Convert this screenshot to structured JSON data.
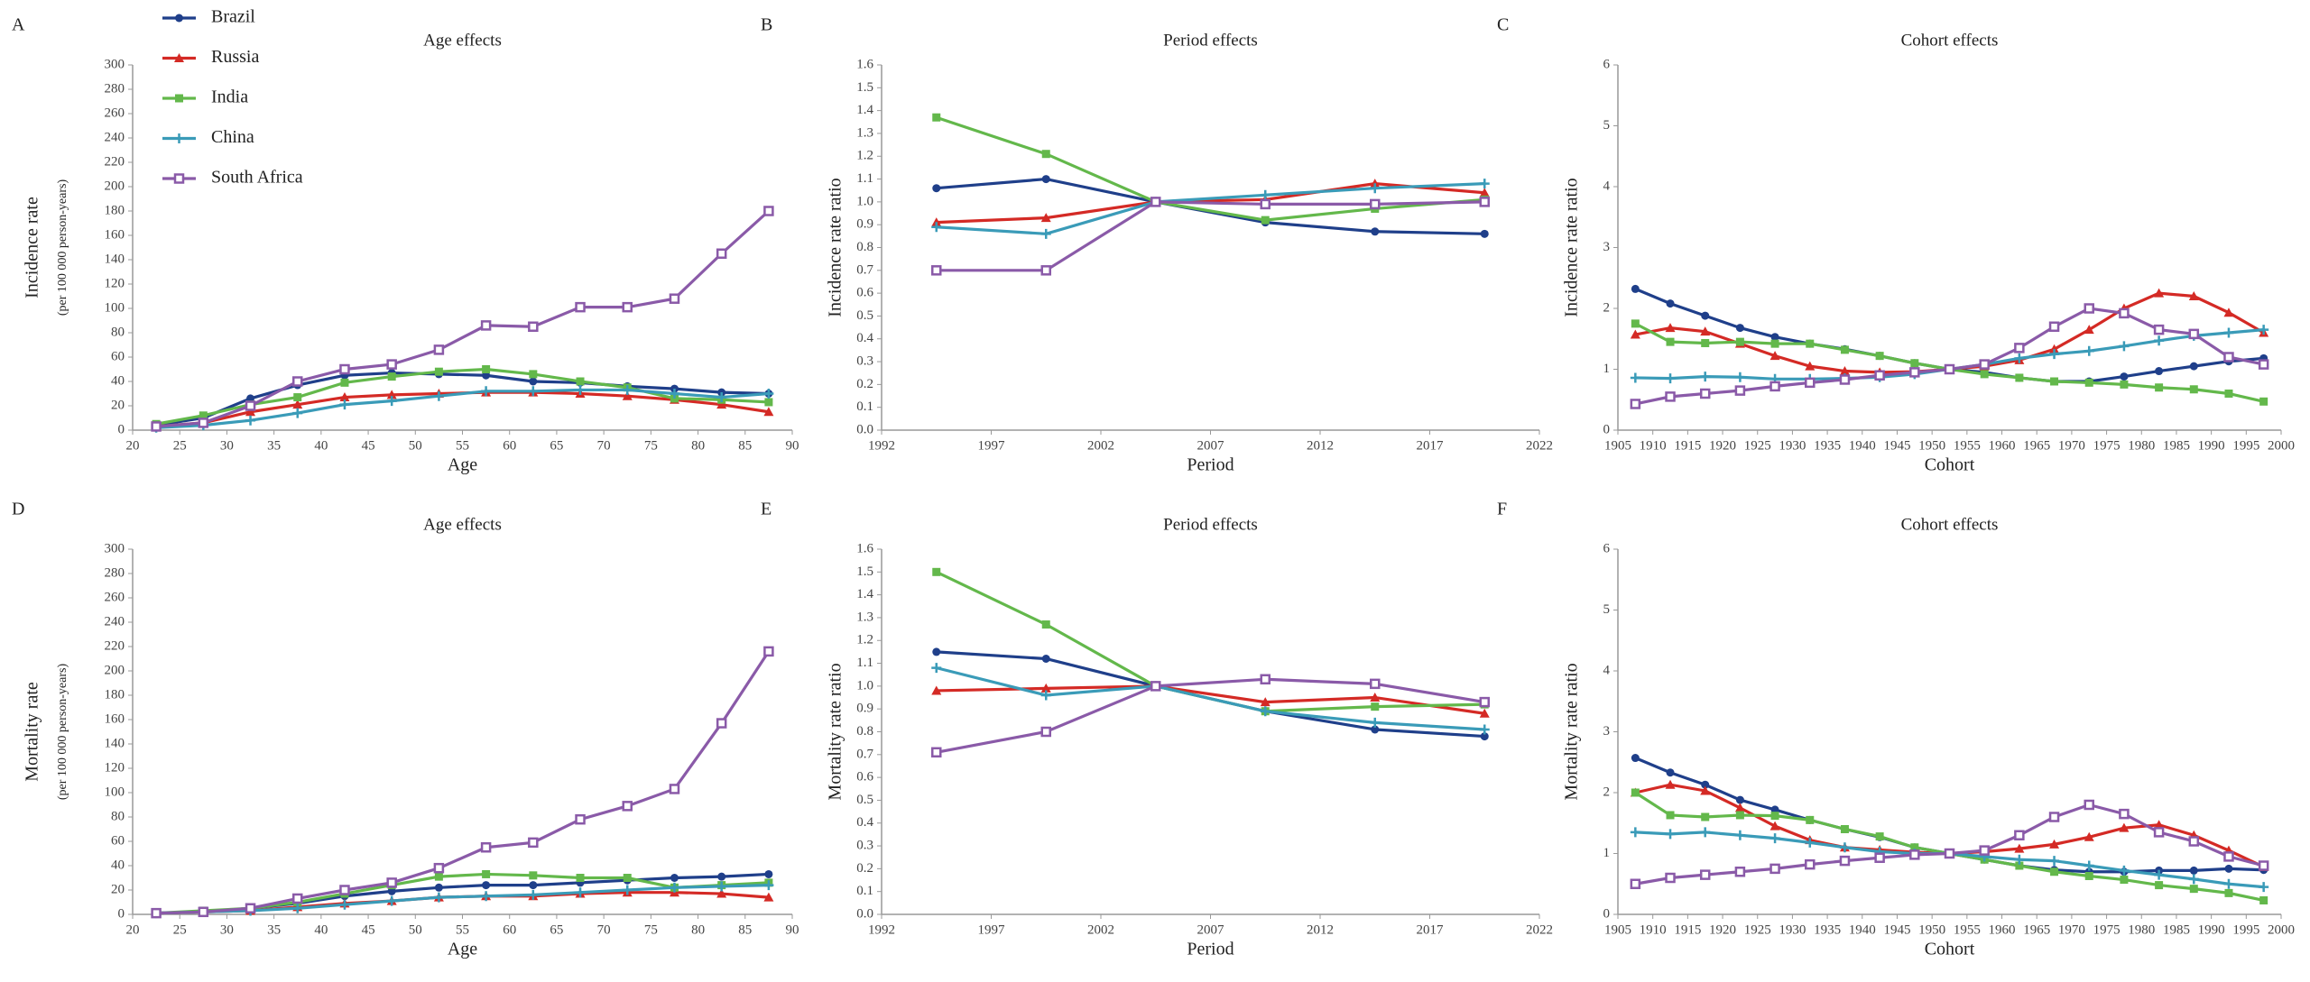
{
  "chart_data": [
    {
      "type": "line",
      "panel": "A",
      "title": "Age effects",
      "x_label": "Age",
      "y_label": "Incidence rate",
      "y_label_sub": "(per 100 000 person-years)",
      "legend": true,
      "x": [
        22.5,
        27.5,
        32.5,
        37.5,
        42.5,
        47.5,
        52.5,
        57.5,
        62.5,
        67.5,
        72.5,
        77.5,
        82.5,
        87.5
      ],
      "xlim": [
        20,
        90
      ],
      "xticks": [
        20,
        25,
        30,
        35,
        40,
        45,
        50,
        55,
        60,
        65,
        70,
        75,
        80,
        85,
        90
      ],
      "ylim": [
        0,
        300
      ],
      "yticks": [
        0,
        20,
        40,
        60,
        80,
        100,
        120,
        140,
        160,
        180,
        200,
        220,
        240,
        260,
        280,
        300
      ],
      "series": [
        {
          "name": "Brazil",
          "color": "#1f3f8a",
          "marker": "circle",
          "values": [
            4,
            10,
            26,
            37,
            45,
            47,
            46,
            45,
            40,
            39,
            36,
            34,
            31,
            30
          ]
        },
        {
          "name": "Russia",
          "color": "#d42a25",
          "marker": "triangle",
          "values": [
            3,
            6,
            15,
            21,
            27,
            29,
            30,
            31,
            31,
            30,
            28,
            25,
            21,
            15
          ]
        },
        {
          "name": "India",
          "color": "#63b84b",
          "marker": "square",
          "values": [
            5,
            12,
            21,
            27,
            39,
            44,
            48,
            50,
            46,
            40,
            35,
            26,
            25,
            23
          ]
        },
        {
          "name": "China",
          "color": "#3a9bb8",
          "marker": "plus",
          "values": [
            2,
            4,
            8,
            14,
            21,
            24,
            28,
            32,
            32,
            33,
            33,
            30,
            27,
            30
          ]
        },
        {
          "name": "South Africa",
          "color": "#8a5aa8",
          "marker": "open-square",
          "values": [
            3,
            6,
            20,
            40,
            50,
            54,
            66,
            86,
            85,
            101,
            101,
            108,
            145,
            180
          ]
        }
      ]
    },
    {
      "type": "line",
      "panel": "B",
      "title": "Period effects",
      "x_label": "Period",
      "y_label": "Incidence rate ratio",
      "x": [
        1994.5,
        1999.5,
        2004.5,
        2009.5,
        2014.5,
        2019.5
      ],
      "xlim": [
        1992,
        2022
      ],
      "xticks": [
        1992,
        1997,
        2002,
        2007,
        2012,
        2017,
        2022
      ],
      "ylim": [
        0,
        1.6
      ],
      "yticks": [
        {
          "value": 0,
          "label": "0.0"
        },
        0.1,
        0.2,
        0.3,
        0.4,
        0.5,
        0.6,
        0.7,
        0.8,
        0.9,
        {
          "value": 1,
          "label": "1.0"
        },
        1.1,
        1.2,
        1.3,
        1.4,
        1.5,
        1.6
      ],
      "series": [
        {
          "color": "#1f3f8a",
          "marker": "circle",
          "values": [
            1.06,
            1.1,
            1.0,
            0.91,
            0.87,
            0.86
          ]
        },
        {
          "color": "#d42a25",
          "marker": "triangle",
          "values": [
            0.91,
            0.93,
            1.0,
            1.01,
            1.08,
            1.04
          ]
        },
        {
          "color": "#63b84b",
          "marker": "square",
          "values": [
            1.37,
            1.21,
            1.0,
            0.92,
            0.97,
            1.01
          ]
        },
        {
          "color": "#3a9bb8",
          "marker": "plus",
          "values": [
            0.89,
            0.86,
            1.0,
            1.03,
            1.06,
            1.08
          ]
        },
        {
          "color": "#8a5aa8",
          "marker": "open-square",
          "values": [
            0.7,
            0.7,
            1.0,
            0.99,
            0.99,
            1.0
          ]
        }
      ]
    },
    {
      "type": "line",
      "panel": "C",
      "title": "Cohort effects",
      "x_label": "Cohort",
      "y_label": "Incidence rate ratio",
      "x": [
        1907.5,
        1912.5,
        1917.5,
        1922.5,
        1927.5,
        1932.5,
        1937.5,
        1942.5,
        1947.5,
        1952.5,
        1957.5,
        1962.5,
        1967.5,
        1972.5,
        1977.5,
        1982.5,
        1987.5,
        1992.5,
        1997.5
      ],
      "xlim": [
        1905,
        2000
      ],
      "xticks": [
        1905,
        1910,
        1915,
        1920,
        1925,
        1930,
        1935,
        1940,
        1945,
        1950,
        1955,
        1960,
        1965,
        1970,
        1975,
        1980,
        1985,
        1990,
        1995,
        2000
      ],
      "ylim": [
        0,
        6
      ],
      "yticks": [
        0,
        1,
        2,
        3,
        4,
        5,
        6
      ],
      "series": [
        {
          "color": "#1f3f8a",
          "marker": "circle",
          "values": [
            2.32,
            2.08,
            1.88,
            1.68,
            1.53,
            1.42,
            1.33,
            1.22,
            1.1,
            1.0,
            0.95,
            0.86,
            0.8,
            0.8,
            0.88,
            0.97,
            1.05,
            1.13,
            1.18
          ]
        },
        {
          "color": "#d42a25",
          "marker": "triangle",
          "values": [
            1.57,
            1.68,
            1.62,
            1.42,
            1.22,
            1.05,
            0.97,
            0.95,
            0.96,
            1.0,
            1.05,
            1.15,
            1.33,
            1.65,
            2.0,
            2.25,
            2.2,
            1.93,
            1.6
          ]
        },
        {
          "color": "#63b84b",
          "marker": "square",
          "values": [
            1.75,
            1.45,
            1.43,
            1.45,
            1.42,
            1.42,
            1.32,
            1.22,
            1.1,
            1.0,
            0.92,
            0.86,
            0.8,
            0.78,
            0.75,
            0.7,
            0.67,
            0.6,
            0.47
          ]
        },
        {
          "color": "#3a9bb8",
          "marker": "plus",
          "values": [
            0.86,
            0.85,
            0.88,
            0.87,
            0.84,
            0.84,
            0.85,
            0.87,
            0.92,
            1.0,
            1.08,
            1.18,
            1.25,
            1.3,
            1.38,
            1.47,
            1.55,
            1.6,
            1.65
          ]
        },
        {
          "color": "#8a5aa8",
          "marker": "open-square",
          "values": [
            0.43,
            0.55,
            0.6,
            0.65,
            0.72,
            0.78,
            0.83,
            0.9,
            0.95,
            1.0,
            1.08,
            1.35,
            1.7,
            2.0,
            1.92,
            1.65,
            1.58,
            1.2,
            1.08
          ]
        }
      ]
    },
    {
      "type": "line",
      "panel": "D",
      "title": "Age effects",
      "x_label": "Age",
      "y_label": "Mortality rate",
      "y_label_sub": "(per 100 000 person-years)",
      "x": [
        22.5,
        27.5,
        32.5,
        37.5,
        42.5,
        47.5,
        52.5,
        57.5,
        62.5,
        67.5,
        72.5,
        77.5,
        82.5,
        87.5
      ],
      "xlim": [
        20,
        90
      ],
      "xticks": [
        20,
        25,
        30,
        35,
        40,
        45,
        50,
        55,
        60,
        65,
        70,
        75,
        80,
        85,
        90
      ],
      "ylim": [
        0,
        300
      ],
      "yticks": [
        0,
        20,
        40,
        60,
        80,
        100,
        120,
        140,
        160,
        180,
        200,
        220,
        240,
        260,
        280,
        300
      ],
      "series": [
        {
          "color": "#1f3f8a",
          "marker": "circle",
          "values": [
            1,
            2,
            5,
            9,
            15,
            19,
            22,
            24,
            24,
            26,
            28,
            30,
            31,
            33
          ]
        },
        {
          "color": "#d42a25",
          "marker": "triangle",
          "values": [
            1,
            2,
            3,
            6,
            9,
            11,
            14,
            15,
            15,
            17,
            18,
            18,
            17,
            14
          ]
        },
        {
          "color": "#63b84b",
          "marker": "square",
          "values": [
            1,
            3,
            5,
            10,
            17,
            24,
            31,
            33,
            32,
            30,
            30,
            22,
            24,
            26
          ]
        },
        {
          "color": "#3a9bb8",
          "marker": "plus",
          "values": [
            1,
            2,
            3,
            5,
            8,
            11,
            14,
            15,
            16,
            18,
            20,
            22,
            23,
            24
          ]
        },
        {
          "color": "#8a5aa8",
          "marker": "open-square",
          "values": [
            1,
            2,
            5,
            13,
            20,
            26,
            38,
            55,
            59,
            78,
            89,
            103,
            157,
            216
          ]
        }
      ]
    },
    {
      "type": "line",
      "panel": "E",
      "title": "Period effects",
      "x_label": "Period",
      "y_label": "Mortality rate ratio",
      "x": [
        1994.5,
        1999.5,
        2004.5,
        2009.5,
        2014.5,
        2019.5
      ],
      "xlim": [
        1992,
        2022
      ],
      "xticks": [
        1992,
        1997,
        2002,
        2007,
        2012,
        2017,
        2022
      ],
      "ylim": [
        0,
        1.6
      ],
      "yticks": [
        {
          "value": 0,
          "label": "0.0"
        },
        0.1,
        0.2,
        0.3,
        0.4,
        0.5,
        0.6,
        0.7,
        0.8,
        0.9,
        {
          "value": 1,
          "label": "1.0"
        },
        1.1,
        1.2,
        1.3,
        1.4,
        1.5,
        1.6
      ],
      "series": [
        {
          "color": "#1f3f8a",
          "marker": "circle",
          "values": [
            1.15,
            1.12,
            1.0,
            0.89,
            0.81,
            0.78
          ]
        },
        {
          "color": "#d42a25",
          "marker": "triangle",
          "values": [
            0.98,
            0.99,
            1.0,
            0.93,
            0.95,
            0.88
          ]
        },
        {
          "color": "#63b84b",
          "marker": "square",
          "values": [
            1.5,
            1.27,
            1.0,
            0.89,
            0.91,
            0.92
          ]
        },
        {
          "color": "#3a9bb8",
          "marker": "plus",
          "values": [
            1.08,
            0.96,
            1.0,
            0.89,
            0.84,
            0.81
          ]
        },
        {
          "color": "#8a5aa8",
          "marker": "open-square",
          "values": [
            0.71,
            0.8,
            1.0,
            1.03,
            1.01,
            0.93
          ]
        }
      ]
    },
    {
      "type": "line",
      "panel": "F",
      "title": "Cohort effects",
      "x_label": "Cohort",
      "y_label": "Mortality rate ratio",
      "x": [
        1907.5,
        1912.5,
        1917.5,
        1922.5,
        1927.5,
        1932.5,
        1937.5,
        1942.5,
        1947.5,
        1952.5,
        1957.5,
        1962.5,
        1967.5,
        1972.5,
        1977.5,
        1982.5,
        1987.5,
        1992.5,
        1997.5
      ],
      "xlim": [
        1905,
        2000
      ],
      "xticks": [
        1905,
        1910,
        1915,
        1920,
        1925,
        1930,
        1935,
        1940,
        1945,
        1950,
        1955,
        1960,
        1965,
        1970,
        1975,
        1980,
        1985,
        1990,
        1995,
        2000
      ],
      "ylim": [
        0,
        6
      ],
      "yticks": [
        0,
        1,
        2,
        3,
        4,
        5,
        6
      ],
      "series": [
        {
          "color": "#1f3f8a",
          "marker": "circle",
          "values": [
            2.57,
            2.33,
            2.13,
            1.88,
            1.72,
            1.55,
            1.4,
            1.27,
            1.1,
            1.0,
            0.9,
            0.8,
            0.73,
            0.7,
            0.7,
            0.72,
            0.72,
            0.75,
            0.73
          ]
        },
        {
          "color": "#d42a25",
          "marker": "triangle",
          "values": [
            2.0,
            2.13,
            2.03,
            1.75,
            1.45,
            1.22,
            1.1,
            1.06,
            1.02,
            1.0,
            1.03,
            1.08,
            1.15,
            1.27,
            1.42,
            1.47,
            1.3,
            1.05,
            0.78
          ]
        },
        {
          "color": "#63b84b",
          "marker": "square",
          "values": [
            2.0,
            1.63,
            1.6,
            1.63,
            1.62,
            1.55,
            1.4,
            1.28,
            1.1,
            1.0,
            0.9,
            0.8,
            0.7,
            0.63,
            0.57,
            0.48,
            0.42,
            0.35,
            0.23
          ]
        },
        {
          "color": "#3a9bb8",
          "marker": "plus",
          "values": [
            1.35,
            1.32,
            1.35,
            1.3,
            1.25,
            1.18,
            1.1,
            1.03,
            1.0,
            1.0,
            0.95,
            0.9,
            0.88,
            0.8,
            0.72,
            0.65,
            0.58,
            0.5,
            0.45
          ]
        },
        {
          "color": "#8a5aa8",
          "marker": "open-square",
          "values": [
            0.5,
            0.6,
            0.65,
            0.7,
            0.75,
            0.82,
            0.88,
            0.93,
            0.98,
            1.0,
            1.05,
            1.3,
            1.6,
            1.8,
            1.65,
            1.35,
            1.2,
            0.95,
            0.8
          ]
        }
      ]
    }
  ]
}
